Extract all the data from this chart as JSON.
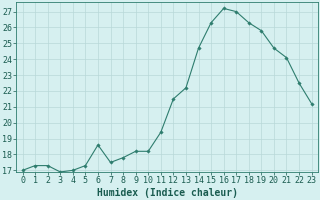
{
  "x": [
    0,
    1,
    2,
    3,
    4,
    5,
    6,
    7,
    8,
    9,
    10,
    11,
    12,
    13,
    14,
    15,
    16,
    17,
    18,
    19,
    20,
    21,
    22,
    23
  ],
  "y": [
    17.0,
    17.3,
    17.3,
    16.9,
    17.0,
    17.3,
    18.6,
    17.5,
    17.8,
    18.2,
    18.2,
    19.4,
    21.5,
    22.2,
    24.7,
    26.3,
    27.2,
    27.0,
    26.3,
    25.8,
    24.7,
    24.1,
    22.5,
    21.2
  ],
  "xlabel": "Humidex (Indice chaleur)",
  "ylim": [
    16.9,
    27.6
  ],
  "xlim": [
    -0.5,
    23.5
  ],
  "yticks": [
    17,
    18,
    19,
    20,
    21,
    22,
    23,
    24,
    25,
    26,
    27
  ],
  "xticks": [
    0,
    1,
    2,
    3,
    4,
    5,
    6,
    7,
    8,
    9,
    10,
    11,
    12,
    13,
    14,
    15,
    16,
    17,
    18,
    19,
    20,
    21,
    22,
    23
  ],
  "line_color": "#2e7d6e",
  "marker_color": "#2e7d6e",
  "bg_color": "#d6f0f0",
  "grid_color": "#b8d8d8",
  "axes_color": "#2e7d6e",
  "tick_label_color": "#1a5c50",
  "xlabel_color": "#1a5c50",
  "font_size": 6.0,
  "xlabel_fontsize": 7.0
}
